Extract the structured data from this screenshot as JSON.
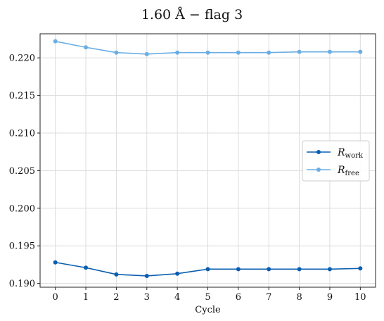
{
  "chart_data": {
    "type": "line",
    "title": "1.60 Å  −  flag 3",
    "xlabel": "Cycle",
    "ylabel": "",
    "x": [
      0,
      1,
      2,
      3,
      4,
      5,
      6,
      7,
      8,
      9,
      10
    ],
    "xlim": [
      -0.5,
      10.5
    ],
    "ylim": [
      0.1895,
      0.2232
    ],
    "xticks": [
      "0",
      "1",
      "2",
      "3",
      "4",
      "5",
      "6",
      "7",
      "8",
      "9",
      "10"
    ],
    "yticks": [
      "0.190",
      "0.195",
      "0.200",
      "0.205",
      "0.210",
      "0.215",
      "0.220"
    ],
    "grid": true,
    "legend_position": "center-right",
    "series": [
      {
        "name": "R_work",
        "color": "#0a5eb0",
        "values": [
          0.1928,
          0.1921,
          0.1912,
          0.191,
          0.1913,
          0.1919,
          0.1919,
          0.1919,
          0.1919,
          0.1919,
          0.192
        ]
      },
      {
        "name": "R_free",
        "color": "#6aaee4",
        "values": [
          0.2222,
          0.2214,
          0.2207,
          0.2205,
          0.2207,
          0.2207,
          0.2207,
          0.2207,
          0.2208,
          0.2208,
          0.2208
        ]
      }
    ]
  }
}
